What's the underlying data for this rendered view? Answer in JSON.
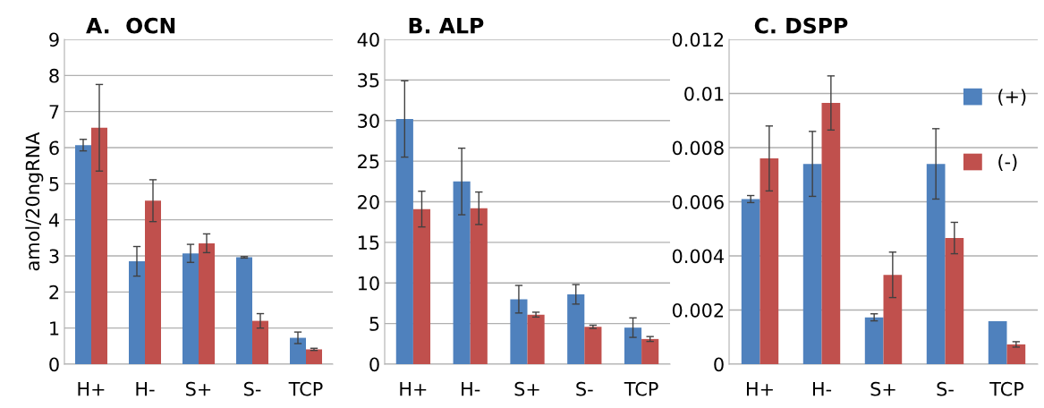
{
  "chart_data": [
    {
      "type": "bar",
      "title": "A.  OCN",
      "ylabel": "amol/20ngRNA",
      "categories": [
        "H+",
        "H-",
        "S+",
        "S-",
        "TCP"
      ],
      "ylim": [
        0,
        9
      ],
      "yticks": [
        0,
        1,
        2,
        3,
        4,
        5,
        6,
        7,
        8,
        9
      ],
      "grid": "y",
      "legend": false,
      "series": [
        {
          "color": "#4f81bd",
          "values": [
            6.07,
            2.85,
            3.07,
            2.96,
            0.73
          ],
          "errors": [
            0.16,
            0.41,
            0.25,
            0.02,
            0.16
          ]
        },
        {
          "color": "#c0504d",
          "values": [
            6.55,
            4.53,
            3.35,
            1.2,
            0.41
          ],
          "errors": [
            1.2,
            0.58,
            0.26,
            0.2,
            0.03
          ]
        }
      ]
    },
    {
      "type": "bar",
      "title": "B. ALP",
      "categories": [
        "H+",
        "H-",
        "S+",
        "S-",
        "TCP"
      ],
      "ylim": [
        0,
        40
      ],
      "yticks": [
        0,
        5,
        10,
        15,
        20,
        25,
        30,
        35,
        40
      ],
      "grid": "y",
      "legend": false,
      "series": [
        {
          "color": "#4f81bd",
          "values": [
            30.2,
            22.5,
            8.0,
            8.6,
            4.5
          ],
          "errors": [
            4.7,
            4.1,
            1.7,
            1.2,
            1.2
          ]
        },
        {
          "color": "#c0504d",
          "values": [
            19.1,
            19.2,
            6.1,
            4.6,
            3.1
          ],
          "errors": [
            2.2,
            2.0,
            0.3,
            0.2,
            0.3
          ]
        }
      ]
    },
    {
      "type": "bar",
      "title": "C. DSPP",
      "categories": [
        "H+",
        "H-",
        "S+",
        "S-",
        "TCP"
      ],
      "ylim": [
        0,
        0.012
      ],
      "yticks": [
        0,
        0.002,
        0.004,
        0.006,
        0.008,
        0.01,
        0.012
      ],
      "grid": "y",
      "legend": "right",
      "series": [
        {
          "name": "(+)",
          "color": "#4f81bd",
          "values": [
            0.0061,
            0.0074,
            0.00173,
            0.0074,
            0.00159
          ],
          "errors": [
            0.00013,
            0.0012,
            0.00013,
            0.0013,
            null
          ]
        },
        {
          "name": "(-)",
          "color": "#c0504d",
          "values": [
            0.0076,
            0.00965,
            0.0033,
            0.00466,
            0.00073
          ],
          "errors": [
            0.0012,
            0.001,
            0.00084,
            0.00058,
            0.0001
          ]
        }
      ]
    }
  ]
}
